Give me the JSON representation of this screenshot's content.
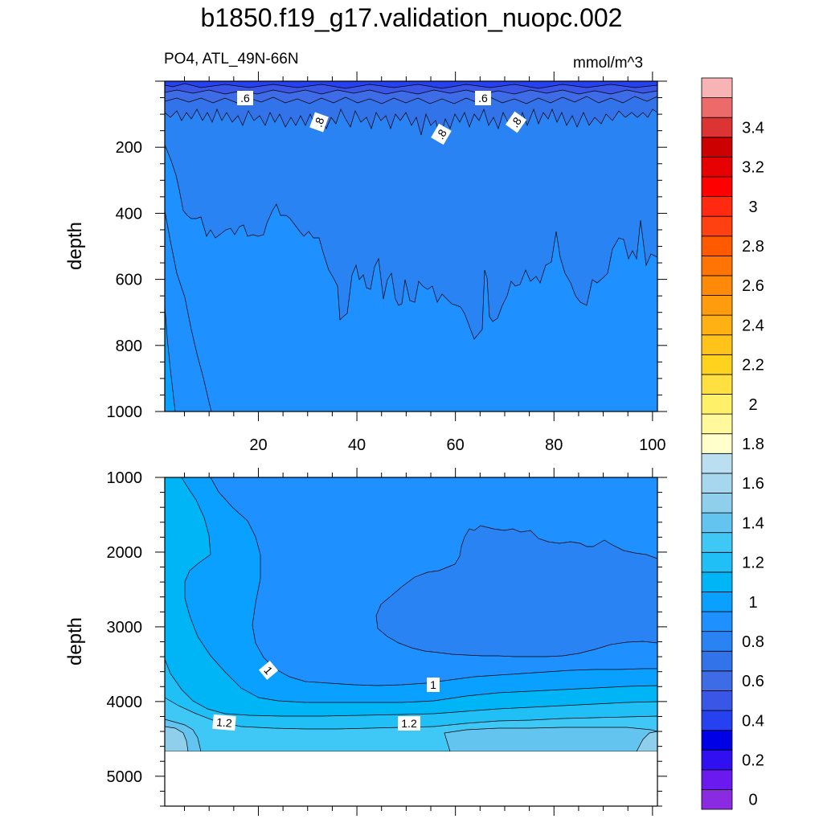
{
  "title": "b1850.f19_g17.validation_nuopc.002",
  "subtitle_left": "PO4, ATL_49N-66N",
  "subtitle_right": "mmol/m^3",
  "chart_data": [
    {
      "type": "heatmap",
      "panel": "upper",
      "variable": "PO4",
      "region": "ATL_49N-66N",
      "units": "mmol/m^3",
      "ylabel": "depth",
      "xlabel": "",
      "xlim": [
        1,
        101
      ],
      "ylim": [
        1000,
        0
      ],
      "y_inverted": true,
      "xticks": [
        20,
        40,
        60,
        80,
        100
      ],
      "yticks": [
        200,
        400,
        600,
        800,
        1000
      ],
      "grid": false,
      "contour_labels": [
        ".6",
        ".6",
        ".8",
        ".8",
        ".8"
      ],
      "field_description": [
        {
          "depth_range": [
            0,
            30
          ],
          "value": 0.5
        },
        {
          "depth_range": [
            30,
            100
          ],
          "value": 0.7
        },
        {
          "depth_range": [
            100,
            500
          ],
          "value": 0.85
        },
        {
          "depth_range": [
            500,
            1000
          ],
          "value": 0.95
        }
      ]
    },
    {
      "type": "heatmap",
      "panel": "lower",
      "ylabel": "depth",
      "xlabel": "",
      "xlim": [
        1,
        101
      ],
      "ylim": [
        5400,
        1000
      ],
      "y_inverted": true,
      "yticks": [
        1000,
        2000,
        3000,
        4000,
        5000
      ],
      "grid": false,
      "contour_labels": [
        "1",
        "1",
        "1.2",
        "1.2"
      ],
      "missing_below_depth": 4600
    }
  ],
  "colorbar": {
    "orientation": "vertical",
    "levels": [
      "0",
      "0.2",
      "0.4",
      "0.6",
      "0.8",
      "1",
      "1.2",
      "1.4",
      "1.6",
      "1.8",
      "2",
      "2.2",
      "2.4",
      "2.6",
      "2.8",
      "3",
      "3.2",
      "3.4"
    ],
    "colors": [
      "#8a2be2",
      "#6a1aee",
      "#3010f0",
      "#0000e6",
      "#2641f0",
      "#3a56e6",
      "#3d6ce6",
      "#3373ea",
      "#2a83f2",
      "#1e90ff",
      "#0aa0ff",
      "#00b5f5",
      "#20bff5",
      "#3fc8f5",
      "#62c4ef",
      "#90cfec",
      "#a7d7ee",
      "#badff0",
      "#ffffcc",
      "#fff89c",
      "#fff06a",
      "#ffe040",
      "#ffd21e",
      "#ffc31a",
      "#ffb013",
      "#ff9c0e",
      "#ff8a0a",
      "#ff7405",
      "#ff5a00",
      "#ff4010",
      "#ff2a10",
      "#ff0000",
      "#e60000",
      "#cc0000",
      "#dc3333",
      "#ec6a6a",
      "#f8b4b4"
    ]
  }
}
